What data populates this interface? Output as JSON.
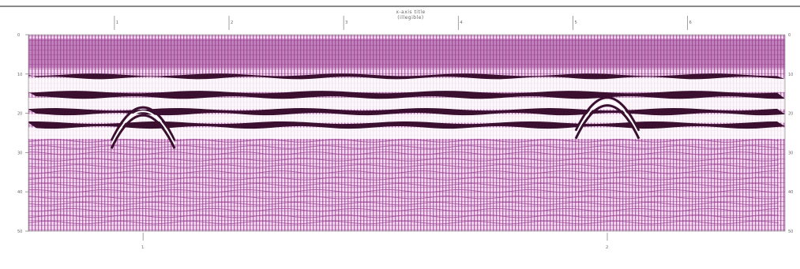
{
  "chart_data": {
    "type": "heatmap",
    "title": "",
    "x_title": "x-axis title (illegible)",
    "colormap": {
      "dark": "#3a0f30",
      "mid": "#9b3f93",
      "light": "#f2d6ef",
      "white": "#ffffff",
      "grid": "#7a2a70"
    },
    "grid": true,
    "x_ticks_top": [
      "1",
      "2",
      "3",
      "4",
      "5",
      "6"
    ],
    "y_ticks_left": [
      "0",
      "10",
      "20",
      "30",
      "40",
      "50"
    ],
    "y_label_left": "",
    "y_label_right": "",
    "bottom_markers": [
      "1",
      "2"
    ],
    "reflector_bands": [
      {
        "name": "band-1",
        "depth_top": 10.2,
        "depth_bottom": 11.0
      },
      {
        "name": "band-2",
        "depth_top": 14.6,
        "depth_bottom": 16.0
      },
      {
        "name": "band-3",
        "depth_top": 19.0,
        "depth_bottom": 20.2
      },
      {
        "name": "band-4",
        "depth_top": 22.4,
        "depth_bottom": 23.6
      }
    ],
    "hyperbolas": [
      {
        "name": "hyperbola-1",
        "apex_x": 1.0,
        "apex_depth": 18.5
      },
      {
        "name": "hyperbola-2",
        "apex_x": 5.05,
        "apex_depth": 16.0
      }
    ]
  }
}
